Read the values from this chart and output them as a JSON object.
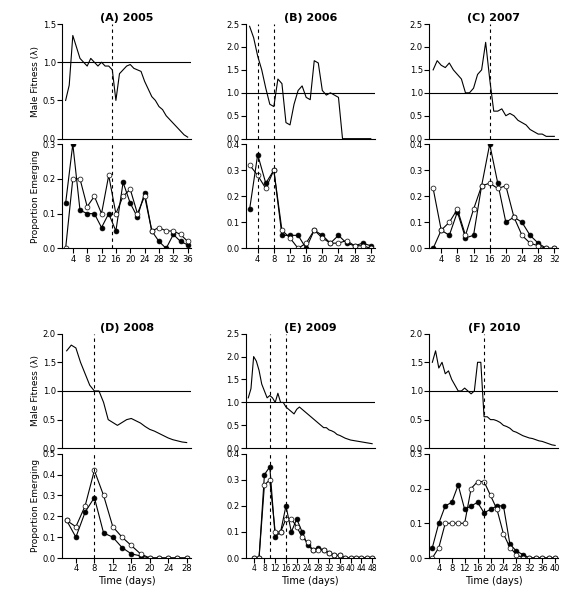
{
  "panels": [
    {
      "label": "(A) 2005",
      "fitness_x": [
        2,
        3,
        4,
        5,
        6,
        7,
        8,
        9,
        10,
        11,
        12,
        13,
        14,
        15,
        16,
        17,
        18,
        19,
        20,
        21,
        22,
        23,
        24,
        25,
        26,
        27,
        28,
        29,
        30,
        31,
        32,
        33,
        34,
        35,
        36
      ],
      "fitness_y": [
        0.5,
        0.7,
        1.35,
        1.2,
        1.05,
        1.0,
        0.95,
        1.05,
        1.0,
        0.95,
        1.0,
        0.95,
        0.95,
        0.9,
        0.5,
        0.85,
        0.9,
        0.95,
        0.97,
        0.92,
        0.9,
        0.88,
        0.75,
        0.65,
        0.55,
        0.5,
        0.42,
        0.38,
        0.3,
        0.25,
        0.2,
        0.15,
        0.1,
        0.05,
        0.02
      ],
      "vlines": [
        15
      ],
      "ylim_fitness": [
        0.0,
        1.5
      ],
      "yticks_fitness": [
        0.0,
        0.5,
        1.0,
        1.5
      ],
      "male_x": [
        2,
        4,
        6,
        8,
        10,
        12,
        14,
        16,
        18,
        20,
        22,
        24,
        26,
        28,
        30,
        32,
        34,
        36
      ],
      "male_y": [
        0.13,
        0.3,
        0.11,
        0.1,
        0.1,
        0.06,
        0.1,
        0.05,
        0.19,
        0.13,
        0.09,
        0.16,
        0.05,
        0.02,
        0.0,
        0.04,
        0.02,
        0.01
      ],
      "female_x": [
        2,
        4,
        6,
        8,
        10,
        12,
        14,
        16,
        18,
        20,
        22,
        24,
        26,
        28,
        30,
        32,
        34,
        36
      ],
      "female_y": [
        0.0,
        0.2,
        0.2,
        0.12,
        0.15,
        0.1,
        0.21,
        0.1,
        0.15,
        0.17,
        0.1,
        0.15,
        0.05,
        0.06,
        0.05,
        0.05,
        0.04,
        0.02
      ],
      "ylim_emerge": [
        0.0,
        0.3
      ],
      "yticks_emerge": [
        0.0,
        0.1,
        0.2,
        0.3
      ],
      "xticks": [
        4,
        8,
        12,
        16,
        20,
        24,
        28,
        32,
        36
      ],
      "xlim": [
        1,
        37
      ]
    },
    {
      "label": "(B) 2006",
      "fitness_x": [
        2,
        3,
        4,
        5,
        6,
        7,
        8,
        9,
        10,
        11,
        12,
        13,
        14,
        15,
        16,
        17,
        18,
        19,
        20,
        21,
        22,
        23,
        24,
        25,
        26,
        27,
        28,
        29,
        30,
        31,
        32
      ],
      "fitness_y": [
        2.45,
        2.2,
        1.8,
        1.5,
        1.1,
        0.75,
        0.7,
        1.3,
        1.2,
        0.35,
        0.3,
        0.75,
        1.05,
        1.15,
        0.9,
        0.85,
        1.7,
        1.65,
        1.05,
        0.95,
        1.0,
        0.95,
        0.9,
        0.0,
        0.0,
        0.0,
        0.0,
        0.0,
        0.0,
        0.0,
        0.0
      ],
      "vlines": [
        4,
        8
      ],
      "ylim_fitness": [
        0.0,
        2.5
      ],
      "yticks_fitness": [
        0.0,
        0.5,
        1.0,
        1.5,
        2.0,
        2.5
      ],
      "male_x": [
        2,
        4,
        6,
        8,
        10,
        12,
        14,
        16,
        18,
        20,
        22,
        24,
        26,
        28,
        30,
        32
      ],
      "male_y": [
        0.15,
        0.36,
        0.25,
        0.3,
        0.05,
        0.05,
        0.05,
        0.0,
        0.07,
        0.05,
        0.02,
        0.05,
        0.02,
        0.01,
        0.02,
        0.01
      ],
      "female_x": [
        2,
        4,
        6,
        8,
        10,
        12,
        14,
        16,
        18,
        20,
        22,
        24,
        26,
        28,
        30,
        32
      ],
      "female_y": [
        0.32,
        0.28,
        0.23,
        0.3,
        0.07,
        0.04,
        0.0,
        0.02,
        0.07,
        0.04,
        0.02,
        0.02,
        0.03,
        0.01,
        0.01,
        0.0
      ],
      "ylim_emerge": [
        0.0,
        0.4
      ],
      "yticks_emerge": [
        0.0,
        0.1,
        0.2,
        0.3,
        0.4
      ],
      "xticks": [
        4,
        8,
        12,
        16,
        20,
        24,
        28,
        32
      ],
      "xlim": [
        1,
        33
      ]
    },
    {
      "label": "(C) 2007",
      "fitness_x": [
        2,
        3,
        4,
        5,
        6,
        7,
        8,
        9,
        10,
        11,
        12,
        13,
        14,
        15,
        16,
        17,
        18,
        19,
        20,
        21,
        22,
        23,
        24,
        25,
        26,
        27,
        28,
        29,
        30,
        31,
        32
      ],
      "fitness_y": [
        1.5,
        1.7,
        1.6,
        1.55,
        1.65,
        1.5,
        1.4,
        1.3,
        1.0,
        1.0,
        1.1,
        1.4,
        1.5,
        2.1,
        1.3,
        0.6,
        0.6,
        0.65,
        0.5,
        0.55,
        0.5,
        0.4,
        0.35,
        0.3,
        0.2,
        0.15,
        0.1,
        0.1,
        0.05,
        0.05,
        0.05
      ],
      "vlines": [
        16
      ],
      "ylim_fitness": [
        0.0,
        2.5
      ],
      "yticks_fitness": [
        0.0,
        0.5,
        1.0,
        1.5,
        2.0,
        2.5
      ],
      "male_x": [
        2,
        4,
        6,
        8,
        10,
        12,
        14,
        16,
        18,
        20,
        22,
        24,
        26,
        28,
        30,
        32
      ],
      "male_y": [
        0.0,
        0.07,
        0.05,
        0.14,
        0.04,
        0.05,
        0.24,
        0.4,
        0.25,
        0.1,
        0.12,
        0.1,
        0.05,
        0.02,
        0.0,
        0.0
      ],
      "female_x": [
        2,
        4,
        6,
        8,
        10,
        12,
        14,
        16,
        18,
        20,
        22,
        24,
        26,
        28,
        30,
        32
      ],
      "female_y": [
        0.23,
        0.07,
        0.1,
        0.15,
        0.05,
        0.15,
        0.24,
        0.25,
        0.23,
        0.24,
        0.12,
        0.05,
        0.02,
        0.01,
        0.0,
        0.0
      ],
      "ylim_emerge": [
        0.0,
        0.4
      ],
      "yticks_emerge": [
        0.0,
        0.1,
        0.2,
        0.3,
        0.4
      ],
      "xticks": [
        4,
        8,
        12,
        16,
        20,
        24,
        28,
        32
      ],
      "xlim": [
        1,
        33
      ]
    },
    {
      "label": "(D) 2008",
      "fitness_x": [
        2,
        3,
        4,
        5,
        6,
        7,
        8,
        9,
        10,
        11,
        12,
        13,
        14,
        15,
        16,
        17,
        18,
        19,
        20,
        21,
        22,
        23,
        24,
        25,
        26,
        27,
        28
      ],
      "fitness_y": [
        1.7,
        1.8,
        1.75,
        1.5,
        1.3,
        1.1,
        1.0,
        1.0,
        0.8,
        0.5,
        0.45,
        0.4,
        0.45,
        0.5,
        0.52,
        0.48,
        0.44,
        0.38,
        0.33,
        0.3,
        0.26,
        0.22,
        0.18,
        0.15,
        0.13,
        0.11,
        0.1
      ],
      "vlines": [
        8
      ],
      "ylim_fitness": [
        0.0,
        2.0
      ],
      "yticks_fitness": [
        0.0,
        0.5,
        1.0,
        1.5,
        2.0
      ],
      "male_x": [
        2,
        4,
        6,
        8,
        10,
        12,
        14,
        16,
        18,
        20,
        22,
        24,
        26,
        28
      ],
      "male_y": [
        0.18,
        0.1,
        0.22,
        0.29,
        0.12,
        0.1,
        0.05,
        0.02,
        0.01,
        0.0,
        0.0,
        0.0,
        0.0,
        0.0
      ],
      "female_x": [
        2,
        4,
        6,
        8,
        10,
        12,
        14,
        16,
        18,
        20,
        22,
        24,
        26,
        28
      ],
      "female_y": [
        0.18,
        0.15,
        0.25,
        0.42,
        0.3,
        0.15,
        0.1,
        0.06,
        0.02,
        0.0,
        0.0,
        0.0,
        0.0,
        0.0
      ],
      "ylim_emerge": [
        0.0,
        0.5
      ],
      "yticks_emerge": [
        0.0,
        0.1,
        0.2,
        0.3,
        0.4,
        0.5
      ],
      "xticks": [
        4,
        8,
        12,
        16,
        20,
        24,
        28
      ],
      "xlim": [
        1,
        29
      ]
    },
    {
      "label": "(E) 2009",
      "fitness_x": [
        2,
        3,
        4,
        5,
        6,
        7,
        8,
        9,
        10,
        11,
        12,
        13,
        14,
        15,
        16,
        17,
        18,
        19,
        20,
        21,
        22,
        23,
        24,
        25,
        26,
        27,
        28,
        29,
        30,
        31,
        32,
        33,
        34,
        35,
        36,
        37,
        38,
        39,
        40,
        41,
        42,
        43,
        44,
        45,
        46,
        47,
        48
      ],
      "fitness_y": [
        1.1,
        1.3,
        2.0,
        1.9,
        1.7,
        1.4,
        1.25,
        1.1,
        1.15,
        1.1,
        1.0,
        1.2,
        1.0,
        1.0,
        0.9,
        0.85,
        0.8,
        0.75,
        0.85,
        0.9,
        0.85,
        0.8,
        0.75,
        0.7,
        0.65,
        0.6,
        0.55,
        0.5,
        0.45,
        0.45,
        0.4,
        0.38,
        0.35,
        0.3,
        0.28,
        0.25,
        0.22,
        0.2,
        0.18,
        0.17,
        0.16,
        0.15,
        0.14,
        0.13,
        0.12,
        0.11,
        0.1
      ],
      "vlines": [
        10,
        16
      ],
      "ylim_fitness": [
        0.0,
        2.5
      ],
      "yticks_fitness": [
        0.0,
        0.5,
        1.0,
        1.5,
        2.0,
        2.5
      ],
      "male_x": [
        4,
        6,
        8,
        10,
        12,
        14,
        16,
        18,
        20,
        22,
        24,
        26,
        28,
        30,
        32,
        34,
        36,
        38,
        40,
        42,
        44,
        46,
        48
      ],
      "male_y": [
        0.0,
        0.0,
        0.32,
        0.35,
        0.08,
        0.1,
        0.2,
        0.1,
        0.15,
        0.1,
        0.05,
        0.03,
        0.04,
        0.03,
        0.02,
        0.01,
        0.01,
        0.0,
        0.0,
        0.0,
        0.0,
        0.0,
        0.0
      ],
      "female_x": [
        4,
        6,
        8,
        10,
        12,
        14,
        16,
        18,
        20,
        22,
        24,
        26,
        28,
        30,
        32,
        34,
        36,
        38,
        40,
        42,
        44,
        46,
        48
      ],
      "female_y": [
        0.0,
        0.0,
        0.28,
        0.3,
        0.1,
        0.1,
        0.15,
        0.15,
        0.12,
        0.08,
        0.06,
        0.03,
        0.03,
        0.03,
        0.02,
        0.01,
        0.01,
        0.0,
        0.0,
        0.0,
        0.0,
        0.0,
        0.0
      ],
      "ylim_emerge": [
        0.0,
        0.4
      ],
      "yticks_emerge": [
        0.0,
        0.1,
        0.2,
        0.3,
        0.4
      ],
      "xticks": [
        4,
        8,
        12,
        16,
        20,
        24,
        28,
        32,
        36,
        40,
        44,
        48
      ],
      "xlim": [
        1,
        49
      ]
    },
    {
      "label": "(F) 2010",
      "fitness_x": [
        2,
        3,
        4,
        5,
        6,
        7,
        8,
        9,
        10,
        11,
        12,
        13,
        14,
        15,
        16,
        17,
        18,
        19,
        20,
        21,
        22,
        23,
        24,
        25,
        26,
        27,
        28,
        29,
        30,
        31,
        32,
        33,
        34,
        35,
        36,
        37,
        38,
        39,
        40
      ],
      "fitness_y": [
        1.5,
        1.7,
        1.4,
        1.5,
        1.3,
        1.35,
        1.2,
        1.1,
        1.0,
        1.0,
        1.05,
        1.0,
        0.95,
        1.0,
        1.5,
        1.5,
        0.55,
        0.55,
        0.5,
        0.5,
        0.48,
        0.45,
        0.4,
        0.38,
        0.35,
        0.3,
        0.28,
        0.25,
        0.22,
        0.2,
        0.18,
        0.17,
        0.15,
        0.13,
        0.12,
        0.1,
        0.08,
        0.06,
        0.05
      ],
      "vlines": [
        18
      ],
      "ylim_fitness": [
        0.0,
        2.0
      ],
      "yticks_fitness": [
        0.0,
        0.5,
        1.0,
        1.5,
        2.0
      ],
      "male_x": [
        2,
        4,
        6,
        8,
        10,
        12,
        14,
        16,
        18,
        20,
        22,
        24,
        26,
        28,
        30,
        32,
        34,
        36,
        38,
        40
      ],
      "male_y": [
        0.03,
        0.1,
        0.15,
        0.16,
        0.21,
        0.14,
        0.15,
        0.16,
        0.13,
        0.14,
        0.15,
        0.15,
        0.04,
        0.02,
        0.01,
        0.0,
        0.0,
        0.0,
        0.0,
        0.0
      ],
      "female_x": [
        2,
        4,
        6,
        8,
        10,
        12,
        14,
        16,
        18,
        20,
        22,
        24,
        26,
        28,
        30,
        32,
        34,
        36,
        38,
        40
      ],
      "female_y": [
        0.0,
        0.03,
        0.1,
        0.1,
        0.1,
        0.1,
        0.2,
        0.22,
        0.22,
        0.18,
        0.14,
        0.07,
        0.03,
        0.01,
        0.0,
        0.0,
        0.0,
        0.0,
        0.0,
        0.0
      ],
      "ylim_emerge": [
        0.0,
        0.3
      ],
      "yticks_emerge": [
        0.0,
        0.1,
        0.2,
        0.3
      ],
      "xticks": [
        4,
        8,
        12,
        16,
        20,
        24,
        28,
        32,
        36,
        40
      ],
      "xlim": [
        1,
        41
      ]
    }
  ],
  "bg_color": "#ffffff"
}
